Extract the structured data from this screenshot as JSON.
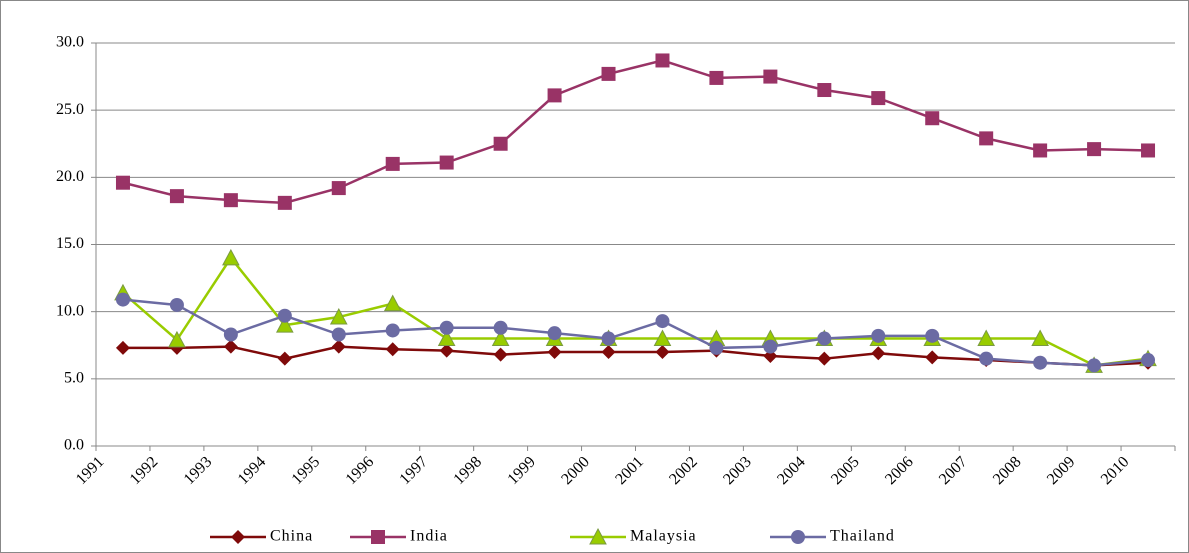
{
  "chart_data": {
    "type": "line",
    "categories": [
      "1991",
      "1992",
      "1993",
      "1994",
      "1995",
      "1996",
      "1997",
      "1998",
      "1999",
      "2000",
      "2001",
      "2002",
      "2003",
      "2004",
      "2005",
      "2006",
      "2007",
      "2008",
      "2009",
      "2010"
    ],
    "series": [
      {
        "name": "China",
        "color": "#7f0a0a",
        "marker": "diamond",
        "values": [
          7.3,
          7.3,
          7.4,
          6.5,
          7.4,
          7.2,
          7.1,
          6.8,
          7.0,
          7.0,
          7.0,
          7.1,
          6.7,
          6.5,
          6.9,
          6.6,
          6.4,
          6.2,
          6.0,
          6.2
        ]
      },
      {
        "name": "India",
        "color": "#993366",
        "marker": "square",
        "values": [
          19.6,
          18.6,
          18.3,
          18.1,
          19.2,
          21.0,
          21.1,
          22.5,
          26.1,
          27.7,
          28.7,
          27.4,
          27.5,
          26.5,
          25.9,
          24.4,
          22.9,
          22.0,
          22.1,
          22.0
        ]
      },
      {
        "name": "Malaysia",
        "color": "#99cc00",
        "marker": "triangle",
        "values": [
          11.4,
          7.9,
          14.0,
          9.0,
          9.6,
          10.6,
          8.0,
          8.0,
          8.0,
          8.0,
          8.0,
          8.0,
          8.0,
          8.0,
          8.0,
          8.0,
          8.0,
          8.0,
          6.0,
          6.5
        ]
      },
      {
        "name": "Thailand",
        "color": "#6b6ba3",
        "marker": "circle",
        "values": [
          10.9,
          10.5,
          8.3,
          9.7,
          8.3,
          8.6,
          8.8,
          8.8,
          8.4,
          8.0,
          9.3,
          7.3,
          7.4,
          8.0,
          8.2,
          8.2,
          6.5,
          6.2,
          6.0,
          6.4
        ]
      }
    ],
    "ylim": [
      0,
      30
    ],
    "yticks": [
      {
        "value": 0,
        "label": "0.0"
      },
      {
        "value": 5,
        "label": "5.0"
      },
      {
        "value": 10,
        "label": "10.0"
      },
      {
        "value": 15,
        "label": "15.0"
      },
      {
        "value": 20,
        "label": "20.0"
      },
      {
        "value": 25,
        "label": "25.0"
      },
      {
        "value": 30,
        "label": "30.0"
      }
    ],
    "grid": true,
    "legend": "bottom"
  }
}
